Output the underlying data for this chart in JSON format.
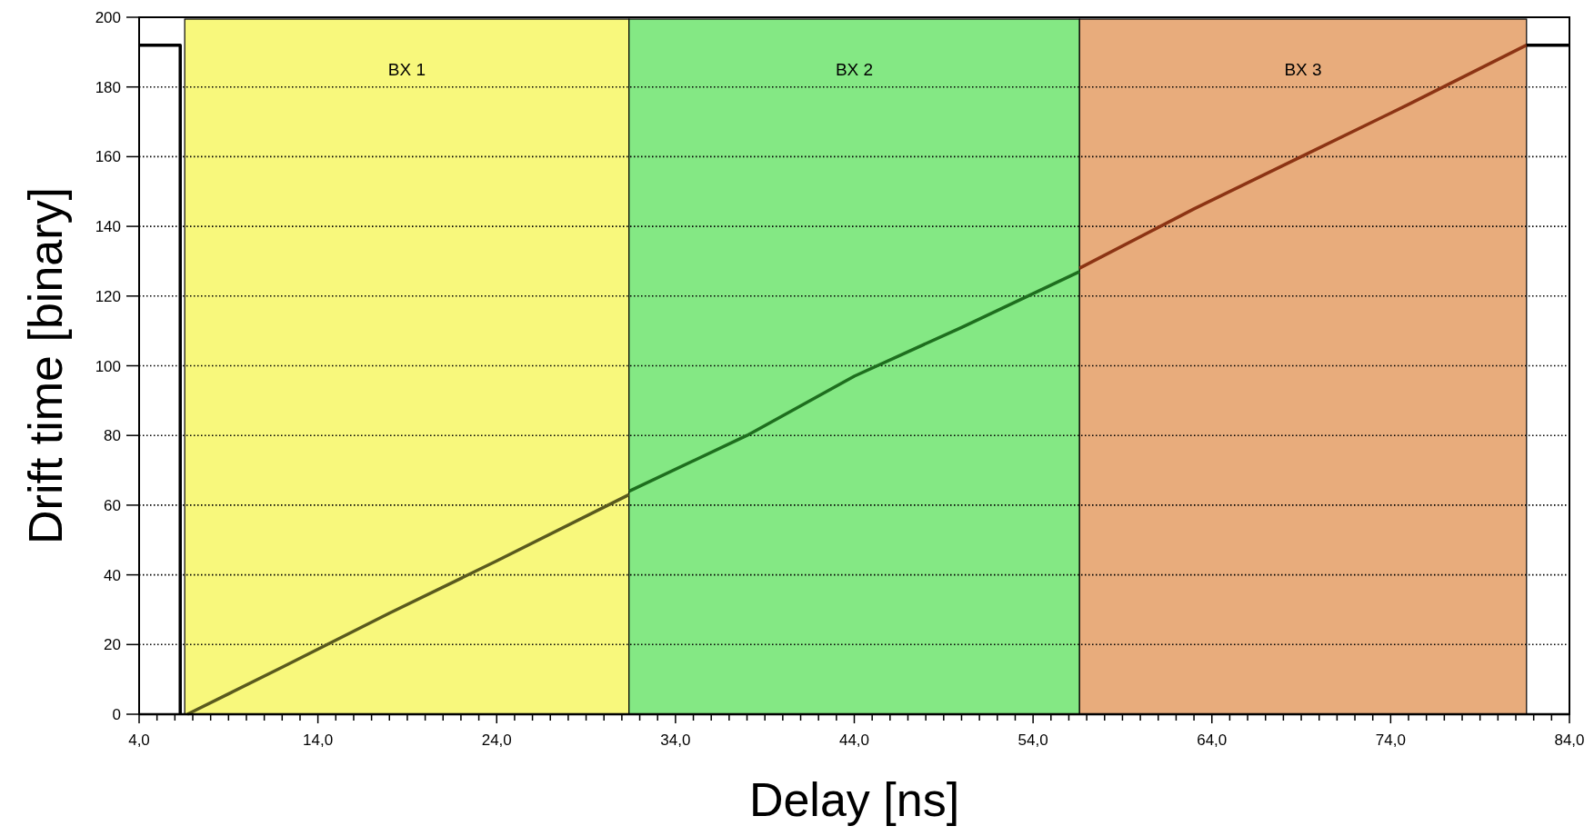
{
  "chart_data": {
    "type": "line",
    "xlabel": "Delay [ns]",
    "ylabel": "Drift time [binary]",
    "xlim": [
      4,
      84
    ],
    "ylim": [
      0,
      200
    ],
    "xticks": [
      {
        "value": 4,
        "label": "4,0"
      },
      {
        "value": 5,
        "label": null
      },
      {
        "value": 6,
        "label": null
      },
      {
        "value": 7,
        "label": null
      },
      {
        "value": 8,
        "label": null
      },
      {
        "value": 9,
        "label": null
      },
      {
        "value": 10,
        "label": null
      },
      {
        "value": 11,
        "label": null
      },
      {
        "value": 12,
        "label": null
      },
      {
        "value": 13,
        "label": null
      },
      {
        "value": 14,
        "label": "14,0"
      },
      {
        "value": 15,
        "label": null
      },
      {
        "value": 16,
        "label": null
      },
      {
        "value": 17,
        "label": null
      },
      {
        "value": 18,
        "label": null
      },
      {
        "value": 19,
        "label": null
      },
      {
        "value": 20,
        "label": null
      },
      {
        "value": 21,
        "label": null
      },
      {
        "value": 22,
        "label": null
      },
      {
        "value": 23,
        "label": null
      },
      {
        "value": 24,
        "label": "24,0"
      },
      {
        "value": 25,
        "label": null
      },
      {
        "value": 26,
        "label": null
      },
      {
        "value": 27,
        "label": null
      },
      {
        "value": 28,
        "label": null
      },
      {
        "value": 29,
        "label": null
      },
      {
        "value": 30,
        "label": null
      },
      {
        "value": 31,
        "label": null
      },
      {
        "value": 32,
        "label": null
      },
      {
        "value": 33,
        "label": null
      },
      {
        "value": 34,
        "label": "34,0"
      },
      {
        "value": 35,
        "label": null
      },
      {
        "value": 36,
        "label": null
      },
      {
        "value": 37,
        "label": null
      },
      {
        "value": 38,
        "label": null
      },
      {
        "value": 39,
        "label": null
      },
      {
        "value": 40,
        "label": null
      },
      {
        "value": 41,
        "label": null
      },
      {
        "value": 42,
        "label": null
      },
      {
        "value": 43,
        "label": null
      },
      {
        "value": 44,
        "label": "44,0"
      },
      {
        "value": 45,
        "label": null
      },
      {
        "value": 46,
        "label": null
      },
      {
        "value": 47,
        "label": null
      },
      {
        "value": 48,
        "label": null
      },
      {
        "value": 49,
        "label": null
      },
      {
        "value": 50,
        "label": null
      },
      {
        "value": 51,
        "label": null
      },
      {
        "value": 52,
        "label": null
      },
      {
        "value": 53,
        "label": null
      },
      {
        "value": 54,
        "label": "54,0"
      },
      {
        "value": 55,
        "label": null
      },
      {
        "value": 56,
        "label": null
      },
      {
        "value": 57,
        "label": null
      },
      {
        "value": 58,
        "label": null
      },
      {
        "value": 59,
        "label": null
      },
      {
        "value": 60,
        "label": null
      },
      {
        "value": 61,
        "label": null
      },
      {
        "value": 62,
        "label": null
      },
      {
        "value": 63,
        "label": null
      },
      {
        "value": 64,
        "label": "64,0"
      },
      {
        "value": 65,
        "label": null
      },
      {
        "value": 66,
        "label": null
      },
      {
        "value": 67,
        "label": null
      },
      {
        "value": 68,
        "label": null
      },
      {
        "value": 69,
        "label": null
      },
      {
        "value": 70,
        "label": null
      },
      {
        "value": 71,
        "label": null
      },
      {
        "value": 72,
        "label": null
      },
      {
        "value": 73,
        "label": null
      },
      {
        "value": 74,
        "label": "74,0"
      },
      {
        "value": 75,
        "label": null
      },
      {
        "value": 76,
        "label": null
      },
      {
        "value": 77,
        "label": null
      },
      {
        "value": 78,
        "label": null
      },
      {
        "value": 79,
        "label": null
      },
      {
        "value": 80,
        "label": null
      },
      {
        "value": 81,
        "label": null
      },
      {
        "value": 82,
        "label": null
      },
      {
        "value": 83,
        "label": null
      },
      {
        "value": 84,
        "label": "84,0"
      }
    ],
    "yticks": [
      0,
      20,
      40,
      60,
      80,
      100,
      120,
      140,
      160,
      180,
      200
    ],
    "grid": "y",
    "line_style": "solid",
    "marker": "none",
    "bands": [
      {
        "axis": "x",
        "from": 6.55,
        "to": 31.4,
        "label": "BX 1",
        "color": "#f8f87c"
      },
      {
        "axis": "x",
        "from": 31.4,
        "to": 56.6,
        "label": "BX 2",
        "color": "#84e884"
      },
      {
        "axis": "x",
        "from": 56.6,
        "to": 81.6,
        "label": "BX 3",
        "color": "#e8ac7c"
      }
    ],
    "series": [
      {
        "color": "#000000",
        "x": [
          4,
          6.3,
          6.3
        ],
        "values": [
          192,
          192,
          0
        ]
      },
      {
        "color": "#5a5a1e",
        "x": [
          6.7,
          12,
          18,
          24,
          31.4
        ],
        "values": [
          0,
          13.5,
          29,
          44,
          63
        ]
      },
      {
        "color": "#1e6e1e",
        "x": [
          31.4,
          38,
          44,
          50,
          56.6
        ],
        "values": [
          64,
          80,
          97,
          111,
          127
        ]
      },
      {
        "color": "#8c3414",
        "x": [
          56.6,
          63,
          69,
          75,
          81.6
        ],
        "values": [
          128,
          145,
          160,
          175,
          192
        ]
      },
      {
        "color": "#000000",
        "x": [
          81.6,
          84
        ],
        "values": [
          192,
          192
        ]
      }
    ]
  }
}
